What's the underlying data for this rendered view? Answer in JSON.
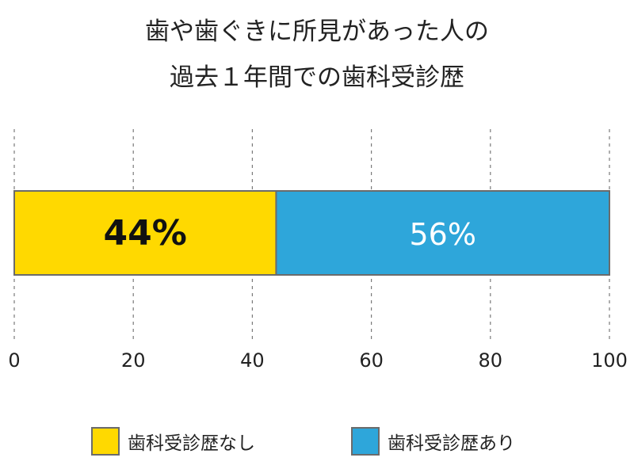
{
  "chart_data": {
    "type": "bar",
    "orientation": "horizontal",
    "stacked": true,
    "title": [
      "歯や歯ぐきに所見があった人の",
      "過去１年間での歯科受診歴"
    ],
    "xlim": [
      0,
      100
    ],
    "xticks": [
      "0",
      "20",
      "40",
      "60",
      "80",
      "100"
    ],
    "grid": true,
    "legend_position": "bottom",
    "series": [
      {
        "name": "歯科受診歴なし",
        "values": [
          44
        ],
        "label": "44%",
        "color": "#FFD900",
        "label_color": "#111111"
      },
      {
        "name": "歯科受診歴あり",
        "values": [
          56
        ],
        "label": "56%",
        "color": "#2EA6DA",
        "label_color": "#ffffff"
      }
    ]
  }
}
